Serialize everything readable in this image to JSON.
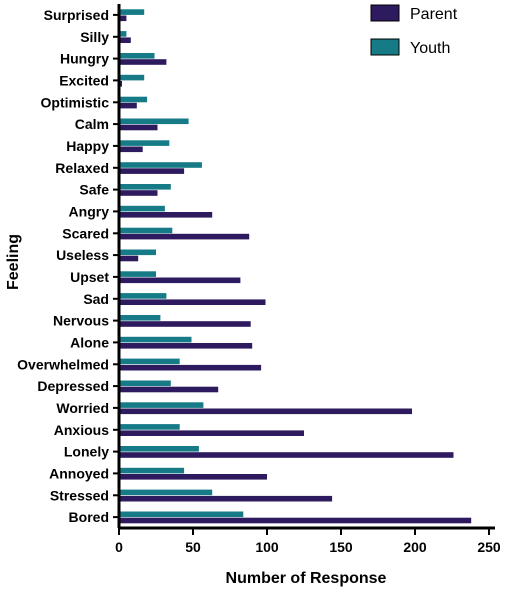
{
  "chart_data": {
    "type": "bar",
    "orientation": "horizontal",
    "title": "",
    "xlabel": "Number of Response",
    "ylabel": "Feeling",
    "xlim": [
      0,
      250
    ],
    "xticks": [
      "0",
      "50",
      "100",
      "150",
      "200",
      "250"
    ],
    "grid": false,
    "legend_position": "top-right",
    "categories": [
      "Surprised",
      "Silly",
      "Hungry",
      "Excited",
      "Optimistic",
      "Calm",
      "Happy",
      "Relaxed",
      "Safe",
      "Angry",
      "Scared",
      "Useless",
      "Upset",
      "Sad",
      "Nervous",
      "Alone",
      "Overwhelmed",
      "Depressed",
      "Worried",
      "Anxious",
      "Lonely",
      "Annoyed",
      "Stressed",
      "Bored"
    ],
    "series": [
      {
        "name": "Parent",
        "color": "#2e1a5e",
        "values": [
          5,
          8,
          32,
          2,
          12,
          26,
          16,
          44,
          26,
          63,
          88,
          13,
          82,
          99,
          89,
          90,
          96,
          67,
          198,
          125,
          226,
          100,
          144,
          238
        ]
      },
      {
        "name": "Youth",
        "color": "#167b86",
        "values": [
          17,
          5,
          24,
          17,
          19,
          47,
          34,
          56,
          35,
          31,
          36,
          25,
          25,
          32,
          28,
          49,
          41,
          35,
          57,
          41,
          54,
          44,
          63,
          84
        ]
      }
    ]
  }
}
